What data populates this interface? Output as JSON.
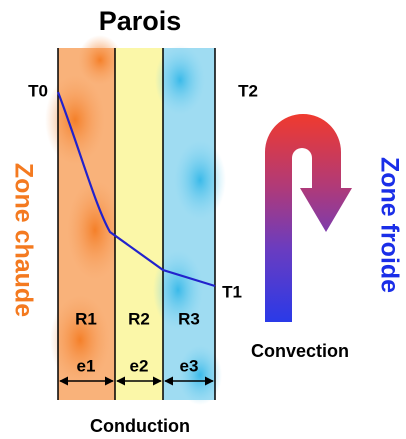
{
  "title": "Parois",
  "temperatures": {
    "t0": "T0",
    "t1": "T1",
    "t2": "T2"
  },
  "layers": [
    {
      "resistance": "R1",
      "thickness": "e1"
    },
    {
      "resistance": "R2",
      "thickness": "e2"
    },
    {
      "resistance": "R3",
      "thickness": "e3"
    }
  ],
  "zones": {
    "hot": "Zone chaude",
    "cold": "Zone froide"
  },
  "convection": "Convection",
  "conduction": "Conduction"
}
